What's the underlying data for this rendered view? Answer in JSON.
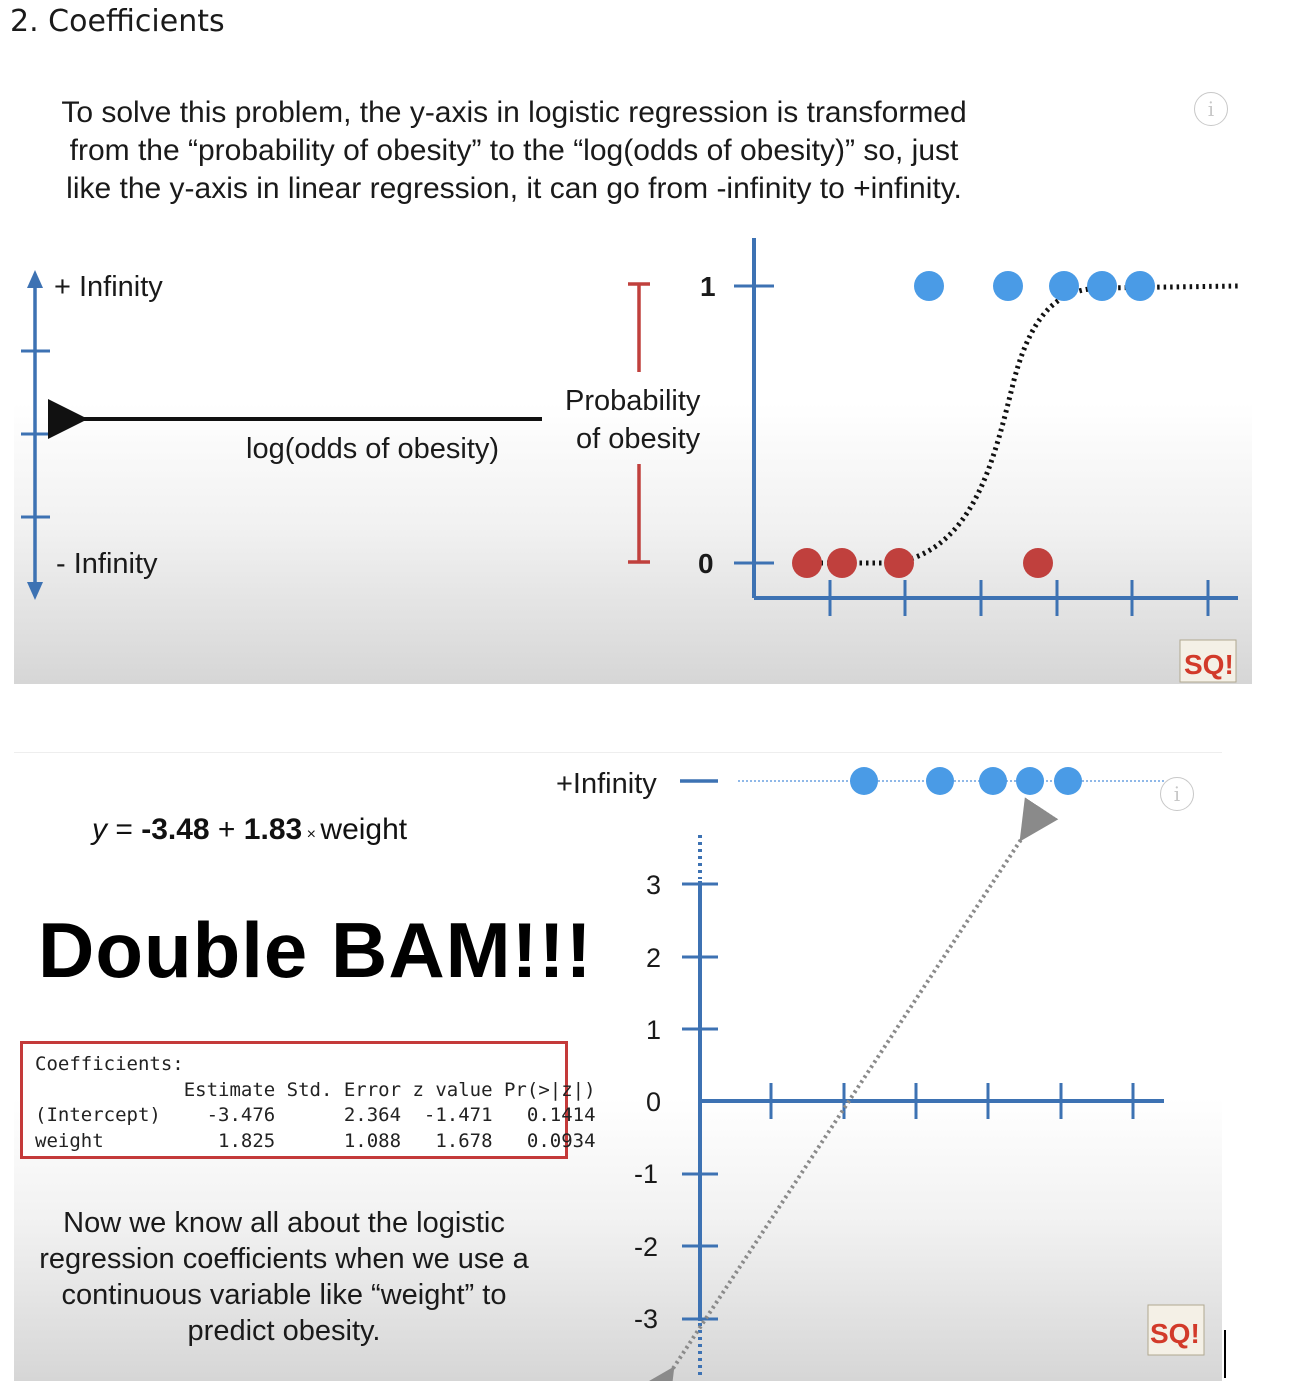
{
  "heading": "2. Coefficients",
  "slide1": {
    "intro_lines": [
      "To solve this problem, the y-axis in logistic regression is transformed",
      "from the “probability of obesity” to the “log(odds of obesity)” so, just",
      "like the y-axis in linear regression, it can go from -infinity to +infinity."
    ],
    "plus_infinity": "+ Infinity",
    "minus_infinity": "- Infinity",
    "arrow_label": "log(odds of obesity)",
    "prob_label_line1": "Probability",
    "prob_label_line2": "of obesity",
    "y_tick_top": "1",
    "y_tick_bottom": "0",
    "info_icon": "i",
    "logo_text": "SQ!",
    "colors": {
      "blue": "#4a9be6",
      "red": "#c0403d",
      "axis": "#3d72b3",
      "bracket": "#c0403d"
    }
  },
  "slide2": {
    "equation": {
      "y": "y",
      "eq": " = ",
      "intercept": "-3.48",
      "plus": " + ",
      "slope": "1.83",
      "times": " × ",
      "var": "weight"
    },
    "bam": "Double BAM!!!",
    "coefficients_table": {
      "title": "Coefficients:",
      "headers": [
        "Estimate",
        "Std. Error",
        "z value",
        "Pr(>|z|)"
      ],
      "rows": [
        {
          "name": "(Intercept)",
          "values": [
            "-3.476",
            "2.364",
            "-1.471",
            "0.1414"
          ]
        },
        {
          "name": "weight",
          "values": [
            "1.825",
            "1.088",
            "1.678",
            "0.0934"
          ]
        }
      ]
    },
    "caption_lines": [
      "Now we know all about the logistic",
      "regression coefficients when we use a",
      "continuous variable like “weight” to",
      "predict obesity."
    ],
    "plus_infinity": "+Infinity",
    "y_ticks": [
      "3",
      "2",
      "1",
      "0",
      "-1",
      "-2",
      "-3"
    ],
    "info_icon": "i",
    "logo_text": "SQ!"
  }
}
